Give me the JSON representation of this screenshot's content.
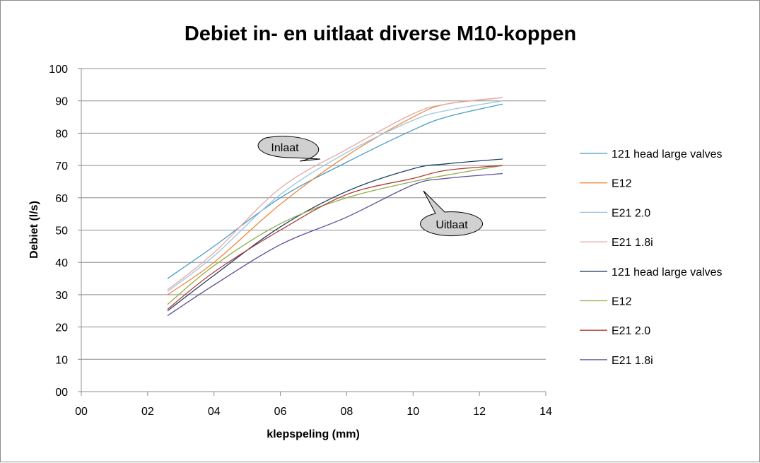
{
  "chart_data": {
    "type": "line",
    "title": "Debiet in- en uitlaat diverse M10-koppen",
    "xlabel": "klepspeling (mm)",
    "ylabel": "Debiet (l/s)",
    "xlim": [
      0,
      14
    ],
    "ylim": [
      0,
      100
    ],
    "x_ticks": [
      0,
      2,
      4,
      6,
      8,
      10,
      12,
      14
    ],
    "x_tick_labels": [
      "00",
      "02",
      "04",
      "06",
      "08",
      "10",
      "12",
      "14"
    ],
    "y_ticks": [
      0,
      10,
      20,
      30,
      40,
      50,
      60,
      70,
      80,
      90,
      100
    ],
    "y_tick_labels": [
      "00",
      "10",
      "20",
      "30",
      "40",
      "50",
      "60",
      "70",
      "80",
      "90",
      "100"
    ],
    "grid": "horizontal",
    "legend_position": "right",
    "x": [
      2.6,
      4.0,
      6.0,
      8.0,
      10.0,
      11.0,
      12.7
    ],
    "series": [
      {
        "name": "121 head large valves",
        "color": "#4a9bc7",
        "values": [
          35,
          45,
          60,
          71,
          81,
          85,
          89
        ]
      },
      {
        "name": "E12",
        "color": "#f0883e",
        "values": [
          30,
          40,
          58,
          73,
          85,
          89,
          91
        ]
      },
      {
        "name": "E21 2.0",
        "color": "#9cc3e0",
        "values": [
          31,
          42,
          61,
          74,
          84,
          87,
          90
        ]
      },
      {
        "name": "E21 1.8i",
        "color": "#e4a8a6",
        "values": [
          31.5,
          43,
          63,
          75,
          86,
          89,
          91
        ]
      },
      {
        "name": "121 head large valves",
        "color": "#1e3f66",
        "values": [
          25,
          36,
          51,
          62,
          69,
          70.5,
          72
        ]
      },
      {
        "name": "E12",
        "color": "#8fae45",
        "values": [
          27,
          39,
          52,
          60,
          65,
          67,
          70
        ]
      },
      {
        "name": "E21 2.0",
        "color": "#b23a3a",
        "values": [
          25.5,
          37,
          50,
          61,
          66,
          68.5,
          70
        ]
      },
      {
        "name": "E21 1.8i",
        "color": "#5e4d99",
        "values": [
          23.5,
          33,
          45.5,
          54,
          64,
          66,
          67.5
        ]
      }
    ],
    "annotations": [
      {
        "text": "Inlaat"
      },
      {
        "text": "Uitlaat"
      }
    ]
  }
}
